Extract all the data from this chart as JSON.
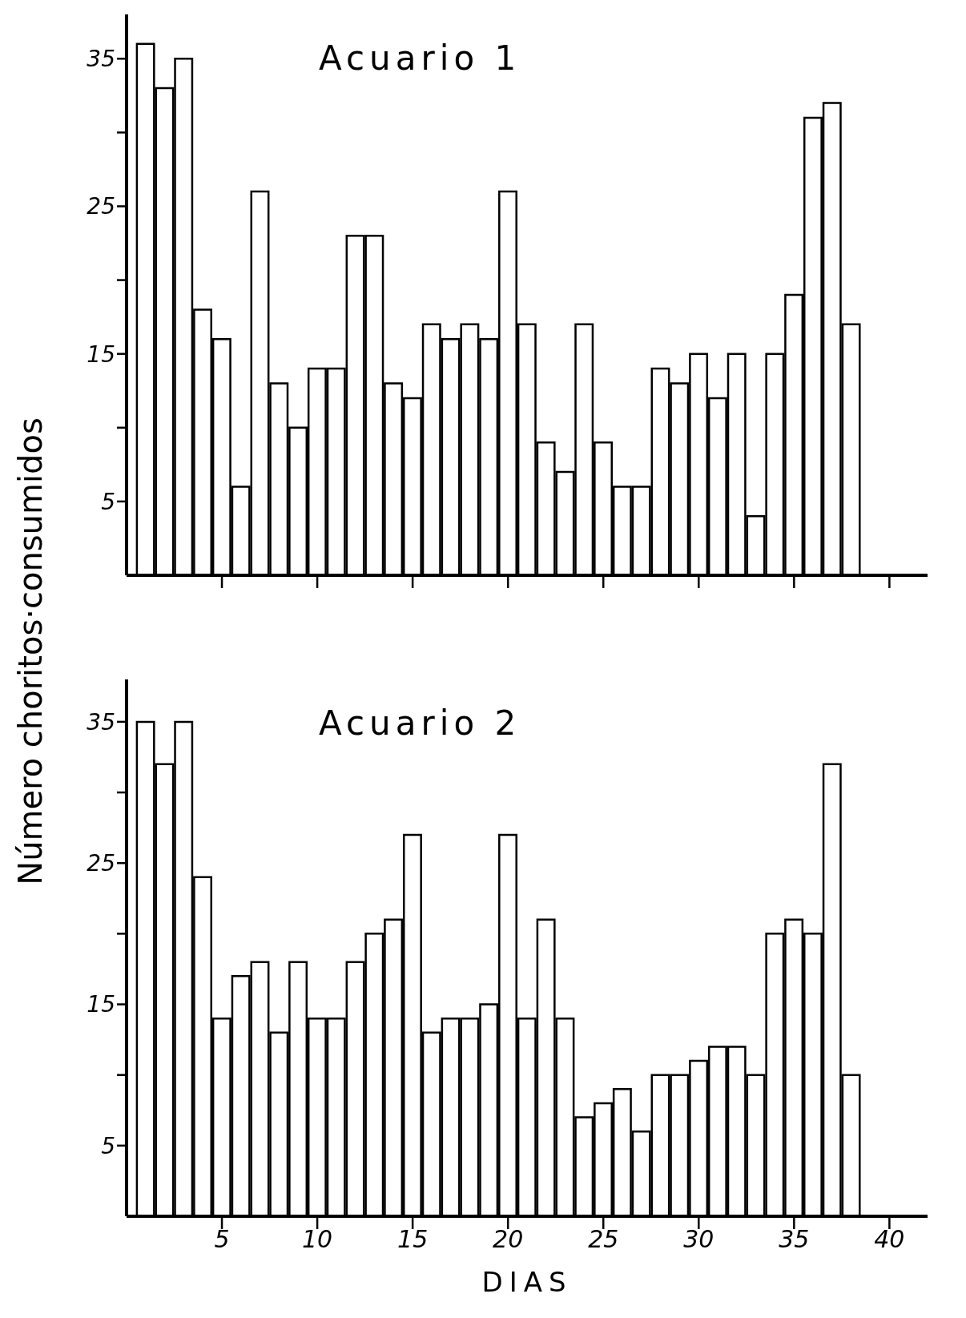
{
  "chart_data": [
    {
      "type": "bar",
      "title": "Acuario 1",
      "ylabel": "Número choritos·consumidos",
      "color": "#ffffff",
      "grid": false,
      "legend": false,
      "tick_labels": "y",
      "x": [
        1,
        2,
        3,
        4,
        5,
        6,
        7,
        8,
        9,
        10,
        11,
        12,
        13,
        14,
        15,
        16,
        17,
        18,
        19,
        20,
        21,
        22,
        23,
        24,
        25,
        26,
        27,
        28,
        29,
        30,
        31,
        32,
        33,
        34,
        35,
        36,
        37,
        38
      ],
      "values": [
        36,
        33,
        35,
        18,
        16,
        6,
        26,
        13,
        10,
        14,
        14,
        23,
        23,
        13,
        12,
        17,
        16,
        17,
        16,
        26,
        17,
        9,
        7,
        17,
        9,
        6,
        6,
        14,
        13,
        15,
        12,
        15,
        4,
        15,
        19,
        31,
        32,
        17
      ],
      "xlim": [
        0,
        42
      ],
      "xticks": [
        5,
        10,
        15,
        20,
        25,
        30,
        35,
        40
      ],
      "ylim": [
        0,
        38
      ],
      "yticks": [
        5,
        {
          "value": 10,
          "label": null
        },
        15,
        {
          "value": 20,
          "label": null
        },
        25,
        {
          "value": 30,
          "label": null
        },
        35
      ]
    },
    {
      "type": "bar",
      "title": "Acuario 2",
      "xlabel": "DIAS",
      "color": "#ffffff",
      "grid": false,
      "legend": false,
      "x": [
        1,
        2,
        3,
        4,
        5,
        6,
        7,
        8,
        9,
        10,
        11,
        12,
        13,
        14,
        15,
        16,
        17,
        18,
        19,
        20,
        21,
        22,
        23,
        24,
        25,
        26,
        27,
        28,
        29,
        30,
        31,
        32,
        33,
        34,
        35,
        36,
        37,
        38
      ],
      "values": [
        35,
        32,
        35,
        24,
        14,
        17,
        18,
        13,
        18,
        14,
        14,
        18,
        20,
        21,
        27,
        13,
        14,
        14,
        15,
        27,
        14,
        21,
        14,
        7,
        8,
        9,
        6,
        10,
        10,
        11,
        12,
        12,
        10,
        20,
        21,
        20,
        32,
        10
      ],
      "xlim": [
        0,
        42
      ],
      "xticks": [
        5,
        10,
        15,
        20,
        25,
        30,
        35,
        40
      ],
      "ylim": [
        0,
        38
      ],
      "yticks": [
        5,
        {
          "value": 10,
          "label": null
        },
        15,
        {
          "value": 20,
          "label": null
        },
        25,
        {
          "value": 30,
          "label": null
        },
        35
      ]
    }
  ]
}
